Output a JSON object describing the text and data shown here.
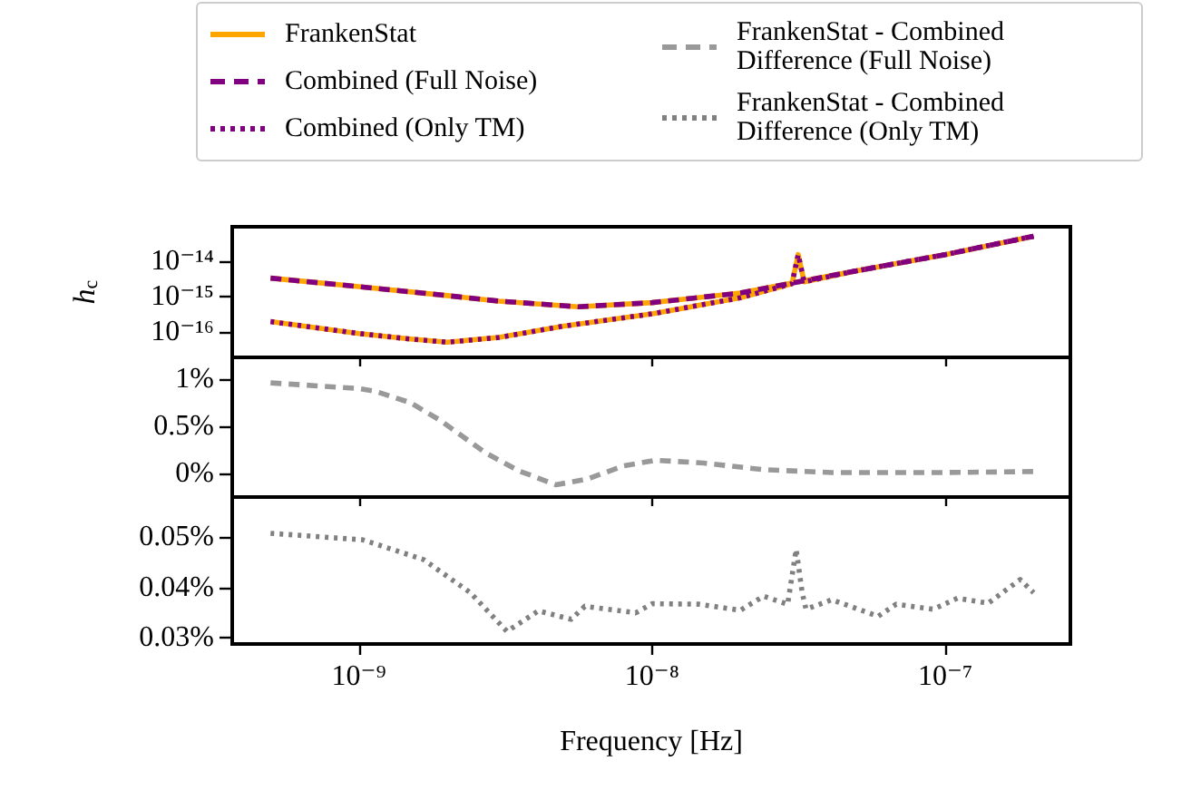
{
  "chart_data": [
    {
      "type": "line",
      "ylabel": "h$_{c}$",
      "log": "xy",
      "legend": "top",
      "marker": "none",
      "tick_labels": "y",
      "xlim": [
        3.7e-10,
        2.67e-07
      ],
      "xticks": [
        {
          "value": 1e-09,
          "label": null
        },
        {
          "value": 1e-08,
          "label": null
        },
        {
          "value": 1e-07,
          "label": null
        }
      ],
      "ylim": [
        2e-17,
        9e-14
      ],
      "yticks": [
        {
          "value": 1e-16,
          "label": "10⁻¹⁶"
        },
        {
          "value": 1e-15,
          "label": "10⁻¹⁵"
        },
        {
          "value": 1e-14,
          "label": "10⁻¹⁴"
        }
      ],
      "series": [
        {
          "name": "FrankenStat",
          "color": "#ffa500",
          "line_style": "solid",
          "x": [
            5e-10,
            1e-09,
            2e-09,
            3e-09,
            5.6e-09,
            1e-08,
            2e-08,
            3e-08,
            5e-08,
            1e-07,
            2e-07,
            null,
            5e-10,
            1e-09,
            1.5e-09,
            2e-09,
            3e-09,
            5e-09,
            1e-08,
            2e-08,
            3e-08,
            3.15e-08,
            3.3e-08,
            5e-08,
            1e-07,
            2e-07
          ],
          "values": [
            3.3e-15,
            1.9e-15,
            1.07e-15,
            7.5e-16,
            5.2e-16,
            6.8e-16,
            1.26e-15,
            2.4e-15,
            5.3e-15,
            1.5e-14,
            4.9e-14,
            null,
            2e-16,
            9.3e-17,
            6.5e-17,
            5.3e-17,
            7.2e-17,
            1.5e-16,
            3.3e-16,
            9.3e-16,
            2.3e-15,
            1.5e-14,
            2.6e-15,
            5.3e-15,
            1.5e-14,
            4.9e-14
          ]
        },
        {
          "name": "Combined (Full Noise)",
          "color": "#800080",
          "line_style": "dashed",
          "x": [
            5e-10,
            1e-09,
            2e-09,
            3e-09,
            5.6e-09,
            1e-08,
            2e-08,
            3e-08,
            5e-08,
            1e-07,
            2e-07
          ],
          "values": [
            3.3e-15,
            1.9e-15,
            1.07e-15,
            7.5e-16,
            5.2e-16,
            6.8e-16,
            1.26e-15,
            2.4e-15,
            5.3e-15,
            1.5e-14,
            4.9e-14
          ]
        },
        {
          "name": "Combined (Only TM)",
          "color": "#800080",
          "line_style": "dotted",
          "x": [
            5e-10,
            1e-09,
            1.5e-09,
            2e-09,
            3e-09,
            5e-09,
            1e-08,
            2e-08,
            3e-08,
            3.15e-08,
            3.3e-08,
            5e-08,
            1e-07,
            2e-07
          ],
          "values": [
            2e-16,
            9.3e-17,
            6.5e-17,
            5.3e-17,
            7.2e-17,
            1.5e-16,
            3.3e-16,
            9.3e-16,
            2.3e-15,
            1.5e-14,
            2.6e-15,
            5.3e-15,
            1.5e-14,
            4.9e-14
          ]
        }
      ]
    },
    {
      "type": "line",
      "log": "x",
      "legend": "top",
      "marker": "none",
      "tick_labels": "y",
      "xlim": [
        3.7e-10,
        2.67e-07
      ],
      "xticks": [
        {
          "value": 1e-09,
          "label": null
        },
        {
          "value": 1e-08,
          "label": null
        },
        {
          "value": 1e-07,
          "label": null
        }
      ],
      "ylim": [
        -0.25,
        1.23
      ],
      "yticks": [
        {
          "value": 0,
          "label": "0%"
        },
        {
          "value": 0.5,
          "label": "0.5%"
        },
        {
          "value": 1,
          "label": "1%"
        }
      ],
      "series": [
        {
          "name": "FrankenStat - Combined Difference (Full Noise)",
          "color": "#999999",
          "line_style": "dashed",
          "x": [
            5e-10,
            1e-09,
            1.14e-09,
            1.5e-09,
            1.9e-09,
            2.7e-09,
            3.5e-09,
            4.7e-09,
            6e-09,
            8e-09,
            1.03e-08,
            1.5e-08,
            2.4e-08,
            4.1e-08,
            1e-07,
            2e-07
          ],
          "values": [
            0.96,
            0.9,
            0.87,
            0.75,
            0.56,
            0.22,
            0.03,
            -0.12,
            -0.06,
            0.08,
            0.14,
            0.11,
            0.04,
            0.01,
            0.01,
            0.02
          ]
        }
      ]
    },
    {
      "type": "line",
      "xlabel": "Frequency [Hz]",
      "log": "x",
      "legend": "top",
      "marker": "none",
      "xlim": [
        3.7e-10,
        2.67e-07
      ],
      "xticks": [
        {
          "value": 1e-09,
          "label": "10⁻⁹"
        },
        {
          "value": 1e-08,
          "label": "10⁻⁸"
        },
        {
          "value": 1e-07,
          "label": "10⁻⁷"
        }
      ],
      "ylim": [
        0.0288,
        0.058
      ],
      "yticks": [
        {
          "value": 0.03,
          "label": "0.03%"
        },
        {
          "value": 0.04,
          "label": "0.04%"
        },
        {
          "value": 0.05,
          "label": "0.05%"
        }
      ],
      "series": [
        {
          "name": "FrankenStat - Combined Difference (Only TM)",
          "color": "#808080",
          "line_style": "dotted",
          "x": [
            5e-10,
            1.03e-09,
            1.66e-09,
            2.4e-09,
            3.2e-09,
            4.1e-09,
            5.3e-09,
            5.9e-09,
            8.8e-09,
            1e-08,
            1.45e-08,
            2e-08,
            2.4e-08,
            2.9e-08,
            3.1e-08,
            3.25e-08,
            3.35e-08,
            4.1e-08,
            5.9e-08,
            6.8e-08,
            9.1e-08,
            1.1e-07,
            1.4e-07,
            1.8e-07,
            2e-07
          ],
          "values": [
            0.0508,
            0.0495,
            0.0456,
            0.039,
            0.0313,
            0.0354,
            0.0337,
            0.0363,
            0.035,
            0.0368,
            0.0367,
            0.0355,
            0.0383,
            0.0367,
            0.0476,
            0.039,
            0.0357,
            0.0376,
            0.0343,
            0.0367,
            0.0357,
            0.0379,
            0.0369,
            0.0416,
            0.039
          ]
        }
      ]
    }
  ]
}
